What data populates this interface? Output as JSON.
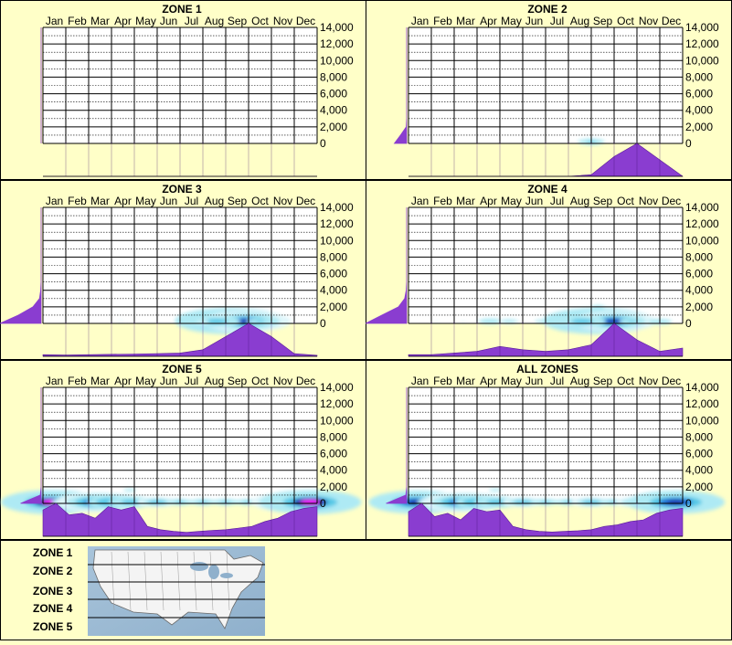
{
  "chart_data": [
    {
      "type": "heatmap",
      "title": "ZONE 1",
      "months": [
        "Jan",
        "Feb",
        "Mar",
        "Apr",
        "May",
        "Jun",
        "Jul",
        "Aug",
        "Sep",
        "Oct",
        "Nov",
        "Dec"
      ],
      "yticks": [
        "14,000",
        "12,000",
        "10,000",
        "8,000",
        "6,000",
        "4,000",
        "2,000",
        "0"
      ],
      "ylim": [
        0,
        14000
      ],
      "elev_dist": [
        0,
        0,
        0,
        0,
        0,
        0,
        0,
        0,
        0,
        0,
        0,
        0,
        0,
        0,
        0
      ],
      "monthly": [
        0,
        0,
        0,
        0,
        0,
        0,
        0,
        0,
        0,
        0,
        0,
        0,
        0
      ],
      "hotspots": []
    },
    {
      "type": "heatmap",
      "title": "ZONE 2",
      "months": [
        "Jan",
        "Feb",
        "Mar",
        "Apr",
        "May",
        "Jun",
        "Jul",
        "Aug",
        "Sep",
        "Oct",
        "Nov",
        "Dec"
      ],
      "yticks": [
        "14,000",
        "12,000",
        "10,000",
        "8,000",
        "6,000",
        "4,000",
        "2,000",
        "0"
      ],
      "ylim": [
        0,
        14000
      ],
      "elev_dist": [
        0.3,
        0.15,
        0.01,
        0,
        0,
        0,
        0,
        0,
        0,
        0,
        0,
        0,
        0,
        0,
        0
      ],
      "monthly": [
        0,
        0,
        0,
        0,
        0,
        0,
        0,
        0,
        0.05,
        0.6,
        1.0,
        0.5,
        0
      ],
      "hotspots": [
        {
          "month": 8.0,
          "elev": 200,
          "i": 0.3
        }
      ]
    },
    {
      "type": "heatmap",
      "title": "ZONE 3",
      "months": [
        "Jan",
        "Feb",
        "Mar",
        "Apr",
        "May",
        "Jun",
        "Jul",
        "Aug",
        "Sep",
        "Oct",
        "Nov",
        "Dec"
      ],
      "yticks": [
        "14,000",
        "12,000",
        "10,000",
        "8,000",
        "6,000",
        "4,000",
        "2,000",
        "0"
      ],
      "ylim": [
        0,
        14000
      ],
      "elev_dist": [
        1.0,
        0.55,
        0.2,
        0.04,
        0.01,
        0,
        0,
        0,
        0,
        0,
        0,
        0,
        0,
        0,
        0
      ],
      "monthly": [
        0.05,
        0.04,
        0.05,
        0.06,
        0.07,
        0.08,
        0.1,
        0.2,
        0.6,
        1.0,
        0.6,
        0.08,
        0.03
      ],
      "hotspots": [
        {
          "month": 8.2,
          "elev": 300,
          "i": 1.0
        },
        {
          "month": 8.9,
          "elev": 250,
          "i": 0.75
        },
        {
          "month": 7.6,
          "elev": 250,
          "i": 0.45
        },
        {
          "month": 9.5,
          "elev": 250,
          "i": 0.3
        },
        {
          "month": 7.0,
          "elev": 200,
          "i": 0.12
        },
        {
          "month": 3.4,
          "elev": 300,
          "i": 0.08
        },
        {
          "month": 0.7,
          "elev": 11000,
          "i": 0.06
        }
      ]
    },
    {
      "type": "heatmap",
      "title": "ZONE 4",
      "months": [
        "Jan",
        "Feb",
        "Mar",
        "Apr",
        "May",
        "Jun",
        "Jul",
        "Aug",
        "Sep",
        "Oct",
        "Nov",
        "Dec"
      ],
      "yticks": [
        "14,000",
        "12,000",
        "10,000",
        "8,000",
        "6,000",
        "4,000",
        "2,000",
        "0"
      ],
      "ylim": [
        0,
        14000
      ],
      "elev_dist": [
        1.0,
        0.6,
        0.2,
        0.05,
        0.01,
        0,
        0,
        0,
        0,
        0,
        0,
        0,
        0,
        0,
        0
      ],
      "monthly": [
        0.05,
        0.05,
        0.1,
        0.15,
        0.3,
        0.2,
        0.15,
        0.2,
        0.35,
        1.0,
        0.5,
        0.15,
        0.25
      ],
      "hotspots": [
        {
          "month": 8.3,
          "elev": 300,
          "i": 1.0
        },
        {
          "month": 9.0,
          "elev": 250,
          "i": 0.7
        },
        {
          "month": 7.6,
          "elev": 250,
          "i": 0.45
        },
        {
          "month": 9.8,
          "elev": 250,
          "i": 0.3
        },
        {
          "month": 3.6,
          "elev": 250,
          "i": 0.25
        },
        {
          "month": 4.4,
          "elev": 250,
          "i": 0.2
        },
        {
          "month": 11.0,
          "elev": 200,
          "i": 0.25
        },
        {
          "month": 5.8,
          "elev": 250,
          "i": 0.15
        },
        {
          "month": 1.2,
          "elev": 200,
          "i": 0.1
        },
        {
          "month": 2.4,
          "elev": 200,
          "i": 0.1
        },
        {
          "month": 8.3,
          "elev": 2000,
          "i": 0.15
        }
      ]
    },
    {
      "type": "heatmap",
      "title": "ZONE 5",
      "months": [
        "Jan",
        "Feb",
        "Mar",
        "Apr",
        "May",
        "Jun",
        "Jul",
        "Aug",
        "Sep",
        "Oct",
        "Nov",
        "Dec"
      ],
      "yticks": [
        "14,000",
        "12,000",
        "10,000",
        "8,000",
        "6,000",
        "4,000",
        "2,000",
        "0"
      ],
      "ylim": [
        0,
        14000
      ],
      "elev_dist": [
        0.5,
        0.02,
        0,
        0,
        0,
        0,
        0,
        0,
        0,
        0,
        0,
        0,
        0,
        0,
        0
      ],
      "monthly": [
        0.8,
        1.0,
        0.65,
        0.7,
        0.55,
        0.9,
        0.8,
        0.9,
        0.3,
        0.2,
        0.15,
        0.12,
        0.15,
        0.18,
        0.2,
        0.25,
        0.3,
        0.45,
        0.55,
        0.75,
        0.85,
        0.9
      ],
      "hotspots": [
        {
          "month": 0.4,
          "elev": 150,
          "i": 0.9
        },
        {
          "month": 1.5,
          "elev": 150,
          "i": 0.5
        },
        {
          "month": 2.4,
          "elev": 150,
          "i": 0.7
        },
        {
          "month": 3.2,
          "elev": 150,
          "i": 0.6
        },
        {
          "month": 3.9,
          "elev": 150,
          "i": 0.45
        },
        {
          "month": 5.0,
          "elev": 150,
          "i": 0.35
        },
        {
          "month": 6.0,
          "elev": 150,
          "i": 0.3
        },
        {
          "month": 7.0,
          "elev": 150,
          "i": 0.3
        },
        {
          "month": 8.0,
          "elev": 150,
          "i": 0.3
        },
        {
          "month": 9.0,
          "elev": 150,
          "i": 0.3
        },
        {
          "month": 10.0,
          "elev": 150,
          "i": 0.4
        },
        {
          "month": 11.0,
          "elev": 150,
          "i": 0.7
        },
        {
          "month": 11.7,
          "elev": 150,
          "i": 0.9
        },
        {
          "month": 3.8,
          "elev": 1600,
          "i": 0.15
        }
      ]
    },
    {
      "type": "heatmap",
      "title": "ALL ZONES",
      "months": [
        "Jan",
        "Feb",
        "Mar",
        "Apr",
        "May",
        "Jun",
        "Jul",
        "Aug",
        "Sep",
        "Oct",
        "Nov",
        "Dec"
      ],
      "yticks": [
        "14,000",
        "12,000",
        "10,000",
        "8,000",
        "6,000",
        "4,000",
        "2,000",
        "0"
      ],
      "ylim": [
        0,
        14000
      ],
      "elev_dist": [
        0.5,
        0.02,
        0,
        0,
        0,
        0,
        0,
        0,
        0,
        0,
        0,
        0,
        0,
        0,
        0
      ],
      "monthly": [
        0.75,
        1.0,
        0.6,
        0.7,
        0.5,
        0.85,
        0.75,
        0.8,
        0.3,
        0.2,
        0.15,
        0.13,
        0.15,
        0.17,
        0.2,
        0.3,
        0.35,
        0.45,
        0.5,
        0.7,
        0.8,
        0.85
      ],
      "hotspots": [
        {
          "month": 0.4,
          "elev": 150,
          "i": 0.85
        },
        {
          "month": 1.5,
          "elev": 150,
          "i": 0.5
        },
        {
          "month": 2.4,
          "elev": 150,
          "i": 0.7
        },
        {
          "month": 3.2,
          "elev": 150,
          "i": 0.55
        },
        {
          "month": 3.9,
          "elev": 150,
          "i": 0.45
        },
        {
          "month": 5.0,
          "elev": 150,
          "i": 0.35
        },
        {
          "month": 6.0,
          "elev": 150,
          "i": 0.3
        },
        {
          "month": 7.0,
          "elev": 150,
          "i": 0.3
        },
        {
          "month": 8.0,
          "elev": 150,
          "i": 0.35
        },
        {
          "month": 9.0,
          "elev": 150,
          "i": 0.3
        },
        {
          "month": 10.0,
          "elev": 150,
          "i": 0.4
        },
        {
          "month": 11.0,
          "elev": 150,
          "i": 0.65
        },
        {
          "month": 11.7,
          "elev": 150,
          "i": 0.85
        },
        {
          "month": 3.8,
          "elev": 1600,
          "i": 0.15
        }
      ]
    }
  ],
  "legend": {
    "zones": [
      "ZONE 1",
      "ZONE 2",
      "ZONE 3",
      "ZONE 4",
      "ZONE 5"
    ]
  },
  "colors": {
    "background": "#ffffc8",
    "plot_bg": "#ffffff",
    "distribution": "#8a3dd0",
    "grid": "#000000"
  }
}
